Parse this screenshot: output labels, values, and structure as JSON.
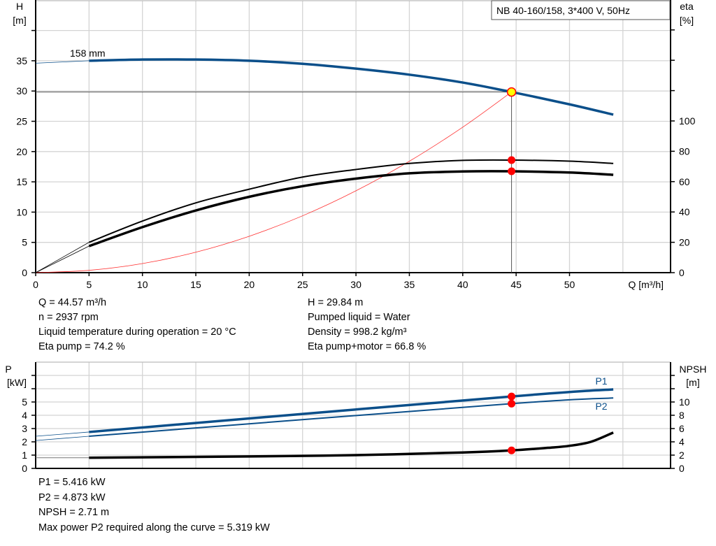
{
  "chart_data": [
    {
      "type": "line",
      "title": "NB 40-160/158, 3*400 V, 50Hz",
      "xlabel": "Q [m³/h]",
      "ylabel": "H [m]",
      "ylabel_name": "H",
      "ylabel_unit": "[m]",
      "y2label_name": "eta",
      "y2label_unit": "[%]",
      "xlim": [
        0,
        58
      ],
      "ylim": [
        0,
        45
      ],
      "y2lim": [
        0,
        207
      ],
      "x_ticks": [
        0,
        5,
        10,
        15,
        20,
        25,
        30,
        35,
        40,
        45,
        50
      ],
      "y_ticks": [
        0,
        5,
        10,
        15,
        20,
        25,
        30,
        35
      ],
      "y2_ticks": [
        0,
        20,
        40,
        60,
        80,
        100
      ],
      "grid": true,
      "curve_label": "158 mm",
      "series": [
        {
          "key": "head",
          "axis": "left",
          "color": "#0b4f8a",
          "x": [
            0,
            5,
            10,
            15,
            20,
            25,
            30,
            35,
            40,
            44.57,
            50,
            54.1
          ],
          "y": [
            34.6,
            35.0,
            35.2,
            35.2,
            35.0,
            34.5,
            33.7,
            32.7,
            31.4,
            29.84,
            27.8,
            26.1
          ]
        },
        {
          "key": "eta_pump",
          "axis": "right",
          "color": "#000000",
          "x": [
            0,
            5,
            10,
            15,
            20,
            25,
            30,
            35,
            40,
            44.57,
            50,
            54.1
          ],
          "y": [
            0,
            20,
            34,
            46,
            55,
            63,
            68,
            72,
            74,
            74.2,
            73.5,
            72
          ]
        },
        {
          "key": "eta_pump_motor",
          "axis": "right",
          "color": "#000000",
          "x": [
            0,
            5,
            10,
            15,
            20,
            25,
            30,
            35,
            40,
            44.57,
            50,
            54.1
          ],
          "y": [
            0,
            17.5,
            30,
            41,
            50,
            57,
            62,
            65.5,
            66.7,
            66.8,
            66,
            64.5
          ]
        },
        {
          "key": "system_curve",
          "axis": "left",
          "color": "#ff3030",
          "x": [
            0,
            5,
            10,
            15,
            20,
            25,
            30,
            35,
            40,
            44.57
          ],
          "y": [
            0,
            0.38,
            1.5,
            3.38,
            6.01,
            9.39,
            13.52,
            18.4,
            24.03,
            29.84
          ]
        }
      ],
      "duty_point": {
        "Q": 44.57,
        "H": 29.84,
        "eta_pump": 74.2,
        "eta_pump_motor": 66.8
      }
    },
    {
      "type": "line",
      "ylabel_name": "P",
      "ylabel_unit": "[kW]",
      "y2label_name": "NPSH",
      "y2label_unit": "[m]",
      "xlim": [
        0,
        58
      ],
      "ylim": [
        0,
        8
      ],
      "y2lim": [
        0,
        16
      ],
      "y_ticks": [
        0,
        1,
        2,
        3,
        4,
        5
      ],
      "y2_ticks": [
        0,
        2,
        4,
        6,
        8,
        10
      ],
      "grid": true,
      "series": [
        {
          "name": "P1",
          "key": "p1",
          "axis": "left",
          "color": "#0b4f8a",
          "x": [
            0,
            5,
            44.57,
            54.1
          ],
          "y": [
            2.42,
            2.74,
            5.416,
            5.95
          ]
        },
        {
          "name": "P2",
          "key": "p2",
          "axis": "left",
          "color": "#0b4f8a",
          "x": [
            0,
            5,
            44.57,
            54.1
          ],
          "y": [
            2.1,
            2.42,
            4.873,
            5.3
          ]
        },
        {
          "key": "npsh",
          "axis": "right",
          "color": "#000000",
          "x": [
            0,
            5,
            20,
            30,
            40,
            44.57,
            48,
            50,
            52,
            54.1
          ],
          "y": [
            1.6,
            1.6,
            1.8,
            2.0,
            2.4,
            2.71,
            3.1,
            3.4,
            4.0,
            5.4
          ]
        }
      ],
      "duty_point": {
        "Q": 44.57,
        "P1": 5.416,
        "P2": 4.873,
        "NPSH": 2.71
      }
    }
  ],
  "info_top": {
    "col1": [
      "Q = 44.57 m³/h",
      "n = 2937 rpm",
      "Liquid temperature during operation = 20 °C",
      "Eta pump = 74.2 %"
    ],
    "col2": [
      "H = 29.84 m",
      "Pumped liquid = Water",
      "Density = 998.2 kg/m³",
      "Eta pump+motor = 66.8 %"
    ]
  },
  "info_bottom": [
    "P1 = 5.416 kW",
    "P2 = 4.873 kW",
    "NPSH = 2.71 m",
    "Max power P2 required along the curve = 5.319 kW"
  ]
}
